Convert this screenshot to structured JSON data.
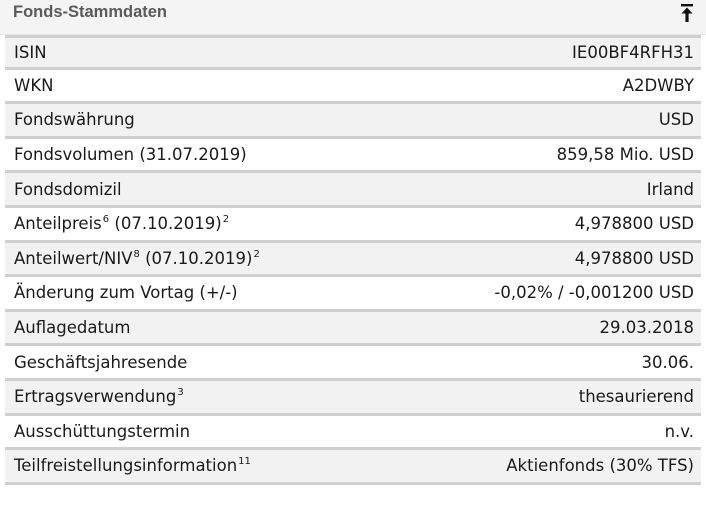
{
  "header": {
    "title": "Fonds-Stammdaten"
  },
  "rows": [
    {
      "label": "ISIN",
      "value": "IE00BF4RFH31"
    },
    {
      "label": "WKN",
      "value": "A2DWBY"
    },
    {
      "label": "Fondswährung",
      "value": "USD"
    },
    {
      "label": "Fondsvolumen (31.07.2019)",
      "value": "859,58 Mio. USD"
    },
    {
      "label": "Fondsdomizil",
      "value": "Irland"
    },
    {
      "label_a": "Anteilpreis",
      "sup_a": "6",
      "label_b": " (07.10.2019)",
      "sup_b": "2",
      "value": "4,978800 USD"
    },
    {
      "label_a": "Anteilwert/NIV",
      "sup_a": "8",
      "label_b": " (07.10.2019)",
      "sup_b": "2",
      "value": "4,978800 USD"
    },
    {
      "label": "Änderung zum Vortag (+/-)",
      "value": "-0,02% / -0,001200 USD"
    },
    {
      "label": "Auflagedatum",
      "value": "29.03.2018"
    },
    {
      "label": "Geschäftsjahresende",
      "value": "30.06."
    },
    {
      "label_a": "Ertragsverwendung",
      "sup_a": "3",
      "value": "thesaurierend"
    },
    {
      "label": "Ausschüttungstermin",
      "value": "n.v."
    },
    {
      "label_a": "Teilfreistellungsinformation",
      "sup_a": "11",
      "value": "Aktienfonds (30% TFS)"
    }
  ]
}
